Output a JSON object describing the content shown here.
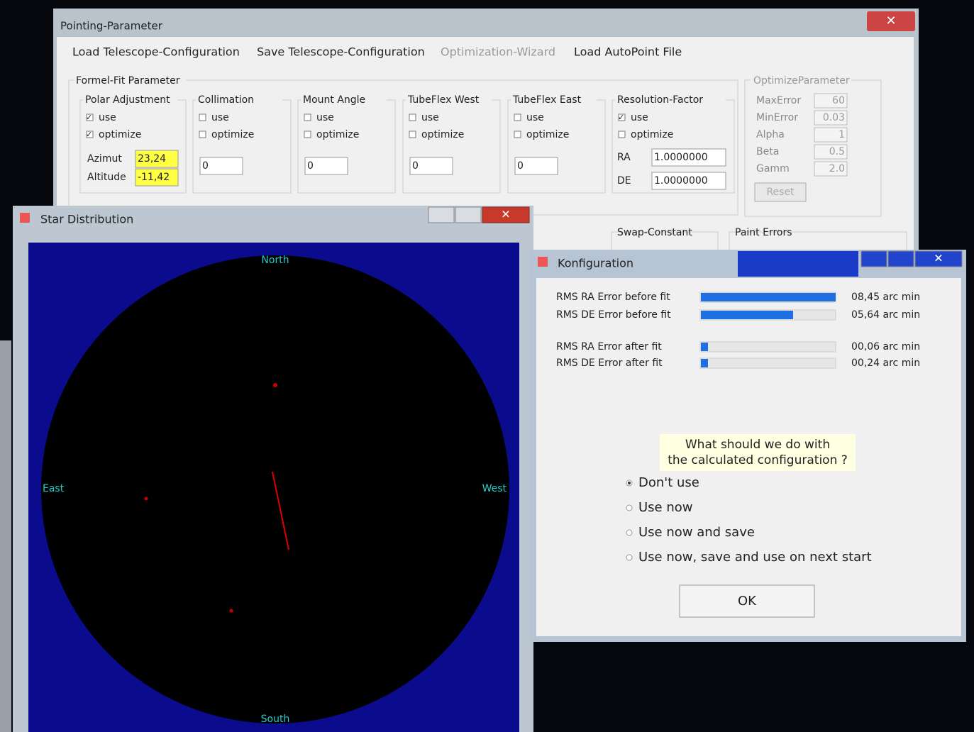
{
  "pointing_window": {
    "title": "Pointing-Parameter",
    "menu": [
      {
        "label": "Load Telescope-Configuration",
        "enabled": true
      },
      {
        "label": "Save Telescope-Configuration",
        "enabled": true
      },
      {
        "label": "Optimization-Wizard",
        "enabled": false
      },
      {
        "label": "Load AutoPoint File",
        "enabled": true
      }
    ],
    "group_title": "Formel-Fit Parameter",
    "groups": [
      {
        "title": "Polar Adjustment",
        "checks": [
          {
            "label": "use",
            "checked": true
          },
          {
            "label": "optimize",
            "checked": true
          }
        ],
        "fields": [
          {
            "label": "Azimut",
            "value": "23,24"
          },
          {
            "label": "Altitude",
            "value": "-11,42"
          }
        ]
      },
      {
        "title": "Collimation",
        "checks": [
          {
            "label": "use",
            "checked": false
          },
          {
            "label": "optimize",
            "checked": false
          }
        ],
        "fields": [
          {
            "value": "0"
          }
        ]
      },
      {
        "title": "Mount Angle",
        "checks": [
          {
            "label": "use",
            "checked": false
          },
          {
            "label": "optimize",
            "checked": false
          }
        ],
        "fields": [
          {
            "value": "0"
          }
        ]
      },
      {
        "title": "TubeFlex West",
        "checks": [
          {
            "label": "use",
            "checked": false
          },
          {
            "label": "optimize",
            "checked": false
          }
        ],
        "fields": [
          {
            "value": "0"
          }
        ]
      },
      {
        "title": "TubeFlex East",
        "checks": [
          {
            "label": "use",
            "checked": false
          },
          {
            "label": "optimize",
            "checked": false
          }
        ],
        "fields": [
          {
            "value": "0"
          }
        ]
      },
      {
        "title": "Resolution-Factor",
        "checks": [
          {
            "label": "use",
            "checked": true
          },
          {
            "label": "optimize",
            "checked": false
          }
        ],
        "fields": [
          {
            "label": "RA",
            "value": "1.0000000"
          },
          {
            "label": "DE",
            "value": "1.0000000"
          }
        ]
      }
    ],
    "optimize": {
      "title": "OptimizeParameter",
      "fields": [
        {
          "label": "MaxError",
          "value": "60"
        },
        {
          "label": "MinError",
          "value": "0.03"
        },
        {
          "label": "Alpha",
          "value": "1"
        },
        {
          "label": "Beta",
          "value": "0.5"
        },
        {
          "label": "Gamm",
          "value": "2.0"
        }
      ],
      "reset": "Reset"
    },
    "swap_constant": "Swap-Constant",
    "paint_errors": "Paint Errors"
  },
  "star_window": {
    "title": "Star Distribution",
    "north": "North",
    "south": "South",
    "east": "East",
    "west": "West"
  },
  "config_window": {
    "title": "Konfiguration",
    "errors": [
      {
        "label": "RMS RA Error before fit",
        "value": "08,45 arc min"
      },
      {
        "label": "RMS DE Error before fit",
        "value": "05,64 arc min"
      },
      {
        "label": "RMS RA Error after fit",
        "value": "00,06 arc min"
      },
      {
        "label": "RMS DE Error after fit",
        "value": "00,24 arc min"
      }
    ],
    "question": [
      "What should we do with",
      "the calculated configuration ?"
    ],
    "options": [
      "Don't use",
      "Use now",
      "Use now and save",
      "Use now, save and use on next start"
    ],
    "selected": 0,
    "ok": "OK"
  }
}
